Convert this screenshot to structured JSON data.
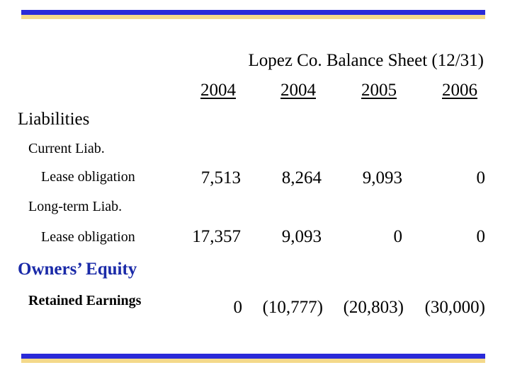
{
  "title": "Lopez Co. Balance Sheet (12/31)",
  "years": [
    "2004",
    "2004",
    "2005",
    "2006"
  ],
  "liabilities": {
    "label": "Liabilities",
    "current": {
      "label": "Current Liab.",
      "lease_label": "Lease obligation",
      "values": [
        "7,513",
        "8,264",
        "9,093",
        "0"
      ]
    },
    "long_term": {
      "label": "Long-term Liab.",
      "lease_label": "Lease obligation",
      "values": [
        "17,357",
        "9,093",
        "0",
        "0"
      ]
    }
  },
  "owners_equity": {
    "label": "Owners’ Equity",
    "retained_label": "Retained Earnings",
    "values": [
      "0",
      "(10,777)",
      "(20,803)",
      "(30,000)"
    ]
  },
  "colors": {
    "bar_blue": "#2a2ad8",
    "bar_gold": "#f4d98a",
    "heading_blue": "#1a2aa8"
  }
}
